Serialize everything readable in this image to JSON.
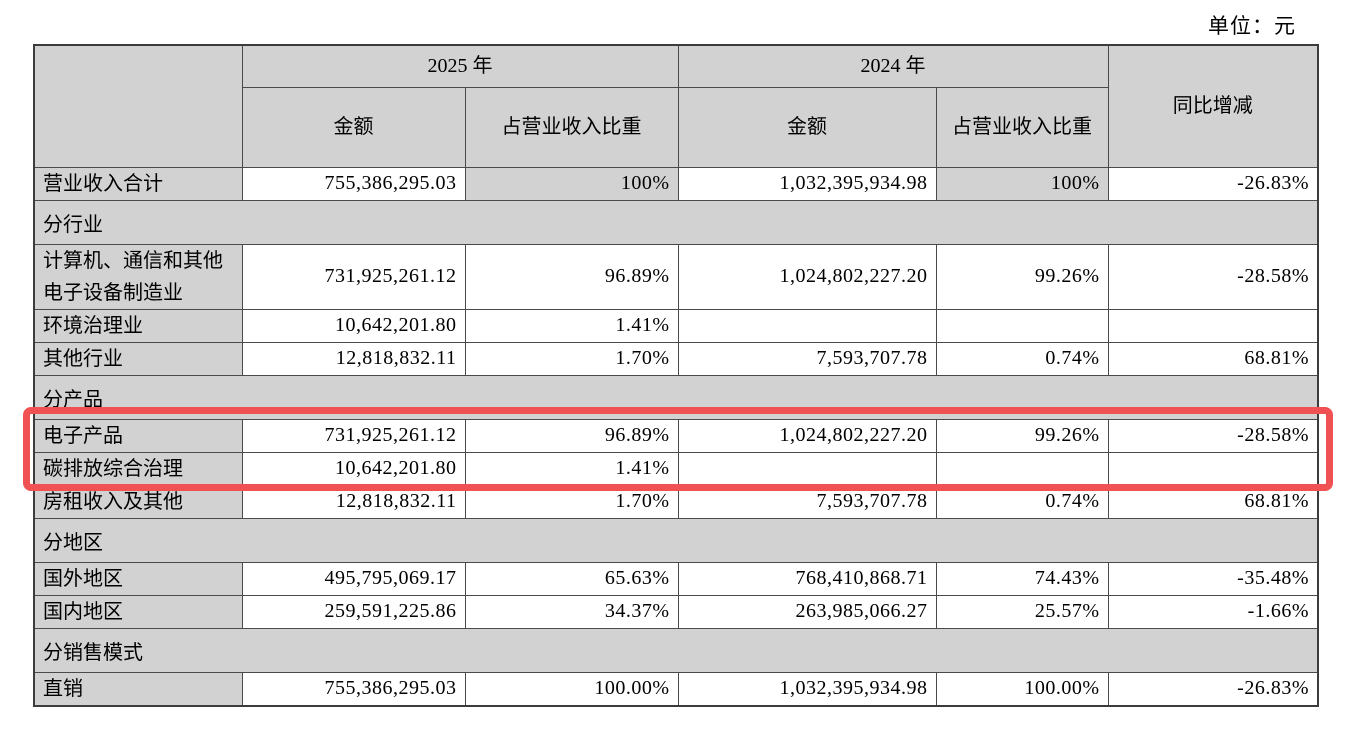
{
  "unit_label": "单位：元",
  "colors": {
    "shaded_cell": "#d2d2d2",
    "highlight_box": "#f05152",
    "border": "#4a4a4a"
  },
  "header": {
    "year_2025": "2025 年",
    "year_2024": "2024 年",
    "amount": "金额",
    "ratio": "占营业收入比重",
    "yoy": "同比增减"
  },
  "rows": [
    {
      "type": "data",
      "label": "营业收入合计",
      "cells": [
        "755,386,295.03",
        "100%",
        "1,032,395,934.98",
        "100%",
        "-26.83%"
      ],
      "shaded": [
        1,
        3
      ]
    },
    {
      "type": "section",
      "label": "分行业"
    },
    {
      "type": "data",
      "label": "计算机、通信和其他电子设备制造业",
      "cells": [
        "731,925,261.12",
        "96.89%",
        "1,024,802,227.20",
        "99.26%",
        "-28.58%"
      ]
    },
    {
      "type": "data",
      "label": "环境治理业",
      "cells": [
        "10,642,201.80",
        "1.41%",
        "",
        "",
        ""
      ]
    },
    {
      "type": "data",
      "label": "其他行业",
      "cells": [
        "12,818,832.11",
        "1.70%",
        "7,593,707.78",
        "0.74%",
        "68.81%"
      ]
    },
    {
      "type": "section",
      "label": "分产品"
    },
    {
      "type": "data",
      "label": "电子产品",
      "cells": [
        "731,925,261.12",
        "96.89%",
        "1,024,802,227.20",
        "99.26%",
        "-28.58%"
      ]
    },
    {
      "type": "data",
      "label": "碳排放综合治理",
      "cells": [
        "10,642,201.80",
        "1.41%",
        "",
        "",
        ""
      ]
    },
    {
      "type": "data",
      "label": "房租收入及其他",
      "cells": [
        "12,818,832.11",
        "1.70%",
        "7,593,707.78",
        "0.74%",
        "68.81%"
      ]
    },
    {
      "type": "section",
      "label": "分地区"
    },
    {
      "type": "data",
      "label": "国外地区",
      "cells": [
        "495,795,069.17",
        "65.63%",
        "768,410,868.71",
        "74.43%",
        "-35.48%"
      ]
    },
    {
      "type": "data",
      "label": "国内地区",
      "cells": [
        "259,591,225.86",
        "34.37%",
        "263,985,066.27",
        "25.57%",
        "-1.66%"
      ]
    },
    {
      "type": "section",
      "label": "分销售模式"
    },
    {
      "type": "data",
      "label": "直销",
      "cells": [
        "755,386,295.03",
        "100.00%",
        "1,032,395,934.98",
        "100.00%",
        "-26.83%"
      ]
    }
  ],
  "annotation": {
    "type": "highlight-box",
    "highlighted_rows": [
      "分产品",
      "电子产品"
    ]
  }
}
